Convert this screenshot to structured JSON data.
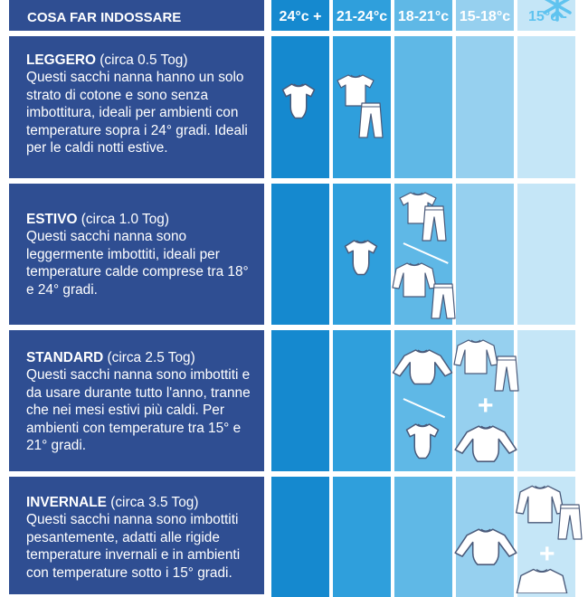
{
  "header": {
    "title": "COSA FAR INDOSSARE",
    "columns": [
      "24°c +",
      "21-24°c",
      "18-21°c",
      "15-18°c",
      "15°c -"
    ]
  },
  "colors": {
    "text_panel": "#2f4e92",
    "columns": [
      "#1589cf",
      "#2f9fdc",
      "#5fb8e6",
      "#96d0ef",
      "#c5e6f7"
    ],
    "snowflake": "#5fc3ef"
  },
  "rows": [
    {
      "name": "LEGGERO",
      "tog": "(circa 0.5 Tog)",
      "desc": "Questi sacchi nanna hanno un solo strato di cotone e sono senza imbottitura, ideali per ambienti con temperature sopra i 24° gradi. Ideali per le caldi notti estive."
    },
    {
      "name": "ESTIVO",
      "tog": "(circa 1.0 Tog)",
      "desc": "Questi sacchi nanna sono leggermente imbottiti, ideali per temperature calde comprese tra 18° e 24° gradi."
    },
    {
      "name": "STANDARD",
      "tog": "(circa 2.5 Tog)",
      "desc": "Questi sacchi nanna sono imbottiti e da usare durante tutto l'anno, tranne che nei mesi estivi più caldi. Per ambienti con temperature tra 15° e 21° gradi."
    },
    {
      "name": "INVERNALE",
      "tog": "(circa 3.5 Tog)",
      "desc": "Questi sacchi nanna sono imbottiti pesantemente, adatti alle rigide temperature invernali e in ambienti con temperature sotto i 15° gradi."
    }
  ],
  "symbols": {
    "plus": "+"
  },
  "icons": [
    "snowflake-icon",
    "bodysuit-short-sleeve-icon",
    "tshirt-icon",
    "pants-icon",
    "bodysuit-long-sleeve-icon",
    "long-sleeve-top-icon"
  ]
}
